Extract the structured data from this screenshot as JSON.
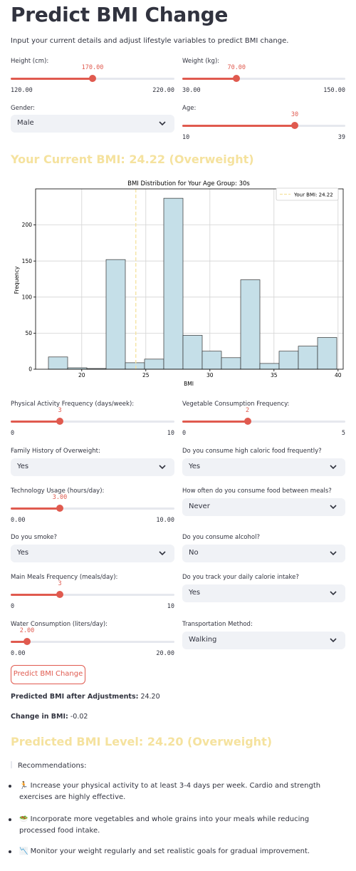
{
  "page": {
    "title": "Predict BMI Change",
    "subtitle": "Input your current details and adjust lifestyle variables to predict BMI change."
  },
  "colors": {
    "accent": "#e05a4f",
    "header_yellow": "#f5e29e",
    "select_bg": "#f0f2f6",
    "bar_fill": "#c5dfe8"
  },
  "inputs": {
    "height": {
      "label": "Height (cm):",
      "value": "170.00",
      "min": "120.00",
      "max": "220.00",
      "fraction": 0.5
    },
    "weight": {
      "label": "Weight (kg):",
      "value": "70.00",
      "min": "30.00",
      "max": "150.00",
      "fraction": 0.333
    },
    "gender": {
      "label": "Gender:",
      "value": "Male"
    },
    "age": {
      "label": "Age:",
      "value": "30",
      "min": "10",
      "max": "39",
      "fraction": 0.69
    }
  },
  "current_bmi": {
    "text": "Your Current BMI: 24.22 (Overweight)"
  },
  "chart_data": {
    "type": "bar",
    "title": "BMI Distribution for Your Age Group: 30s",
    "xlabel": "BMI",
    "ylabel": "Frequency",
    "xlim": [
      16.4,
      40.4
    ],
    "ylim": [
      0,
      250
    ],
    "xticks": [
      20,
      25,
      30,
      35,
      40
    ],
    "yticks": [
      0,
      50,
      100,
      150,
      200
    ],
    "grid": true,
    "legend": {
      "position": "top-right",
      "label": "Your BMI: 24.22"
    },
    "marker_line": {
      "x": 24.22,
      "style": "dashed",
      "color": "#f5e29e"
    },
    "bins": [
      {
        "start": 17.4,
        "end": 18.9,
        "count": 17
      },
      {
        "start": 18.9,
        "end": 20.4,
        "count": 2
      },
      {
        "start": 20.4,
        "end": 21.9,
        "count": 1
      },
      {
        "start": 21.9,
        "end": 23.4,
        "count": 152
      },
      {
        "start": 23.4,
        "end": 24.9,
        "count": 9
      },
      {
        "start": 24.9,
        "end": 26.4,
        "count": 14
      },
      {
        "start": 26.4,
        "end": 27.9,
        "count": 237
      },
      {
        "start": 27.9,
        "end": 29.4,
        "count": 47
      },
      {
        "start": 29.4,
        "end": 30.9,
        "count": 25
      },
      {
        "start": 30.9,
        "end": 32.4,
        "count": 16
      },
      {
        "start": 32.4,
        "end": 33.9,
        "count": 124
      },
      {
        "start": 33.9,
        "end": 35.4,
        "count": 8
      },
      {
        "start": 35.4,
        "end": 36.9,
        "count": 25
      },
      {
        "start": 36.9,
        "end": 38.4,
        "count": 32
      },
      {
        "start": 38.4,
        "end": 39.9,
        "count": 44
      }
    ]
  },
  "lifestyle": {
    "physical_activity": {
      "label": "Physical Activity Frequency (days/week):",
      "value": "3",
      "min": "0",
      "max": "10",
      "fraction": 0.3
    },
    "vegetable": {
      "label": "Vegetable Consumption Frequency:",
      "value": "2",
      "min": "0",
      "max": "5",
      "fraction": 0.4
    },
    "family_history": {
      "label": "Family History of Overweight:",
      "value": "Yes"
    },
    "high_caloric": {
      "label": "Do you consume high caloric food frequently?",
      "value": "Yes"
    },
    "technology": {
      "label": "Technology Usage (hours/day):",
      "value": "3.00",
      "min": "0.00",
      "max": "10.00",
      "fraction": 0.3
    },
    "between_meals": {
      "label": "How often do you consume food between meals?",
      "value": "Never"
    },
    "smoke": {
      "label": "Do you smoke?",
      "value": "Yes"
    },
    "alcohol": {
      "label": "Do you consume alcohol?",
      "value": "No"
    },
    "main_meals": {
      "label": "Main Meals Frequency (meals/day):",
      "value": "3",
      "min": "0",
      "max": "10",
      "fraction": 0.3
    },
    "track_calories": {
      "label": "Do you track your daily calorie intake?",
      "value": "Yes"
    },
    "water": {
      "label": "Water Consumption (liters/day):",
      "value": "2.00",
      "min": "0.00",
      "max": "20.00",
      "fraction": 0.1
    },
    "transport": {
      "label": "Transportation Method:",
      "value": "Walking"
    }
  },
  "actions": {
    "predict_label": "Predict BMI Change"
  },
  "results": {
    "predicted_label": "Predicted BMI after Adjustments:",
    "predicted_value": "24.20",
    "change_label": "Change in BMI:",
    "change_value": "-0.02",
    "level_text": "Predicted BMI Level: 24.20 (Overweight)"
  },
  "recommendations": {
    "heading": "Recommendations:",
    "items": [
      {
        "icon": "running-icon",
        "glyph": "🏃",
        "text": "Increase your physical activity to at least 3-4 days per week. Cardio and strength exercises are highly effective."
      },
      {
        "icon": "salad-icon",
        "glyph": "🥗",
        "text": "Incorporate more vegetables and whole grains into your meals while reducing processed food intake."
      },
      {
        "icon": "chart-icon",
        "glyph": "📉",
        "text": "Monitor your weight regularly and set realistic goals for gradual improvement."
      }
    ]
  }
}
